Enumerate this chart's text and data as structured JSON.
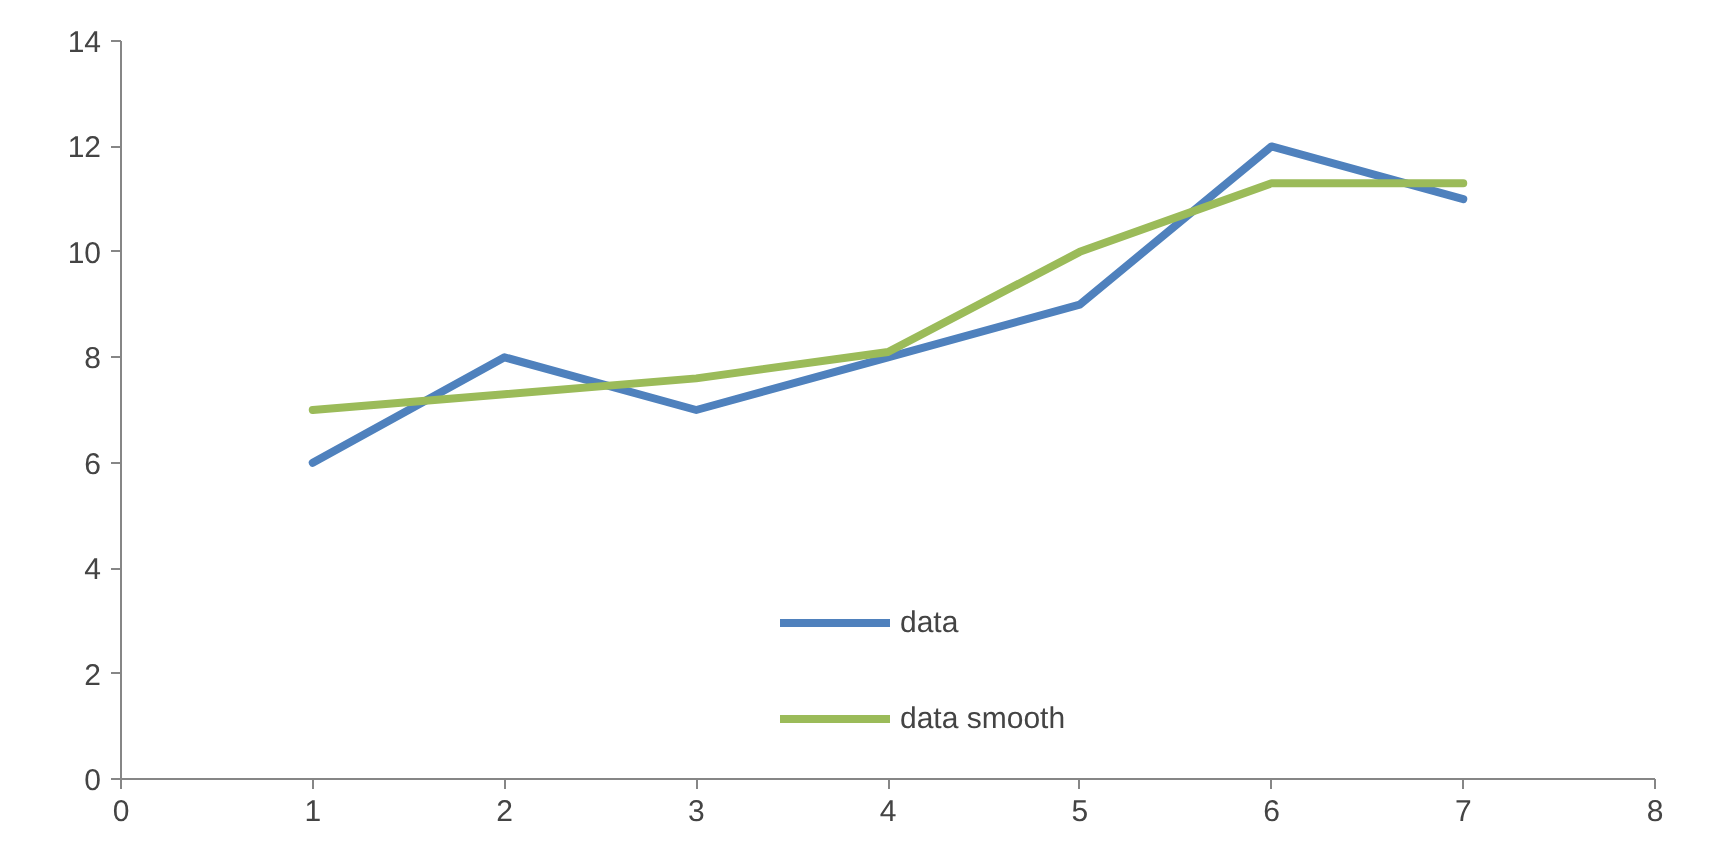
{
  "chart_data": {
    "type": "line",
    "x": [
      1,
      2,
      3,
      4,
      5,
      6,
      7
    ],
    "series": [
      {
        "name": "data",
        "color": "#4f81bd",
        "values": [
          6,
          8,
          7,
          8,
          9,
          12,
          11
        ]
      },
      {
        "name": "data smooth",
        "color": "#9bbb59",
        "values": [
          7,
          7.3,
          7.6,
          8.1,
          10,
          11.3,
          11.3
        ]
      }
    ],
    "xlim": [
      0,
      8
    ],
    "xticks": [
      0,
      1,
      2,
      3,
      4,
      5,
      6,
      7,
      8
    ],
    "ylim": [
      0,
      14
    ],
    "yticks": [
      0,
      2,
      4,
      6,
      8,
      10,
      12,
      14
    ],
    "grid": false,
    "legend": "bottom",
    "marker": "none",
    "line_style": "solid"
  }
}
